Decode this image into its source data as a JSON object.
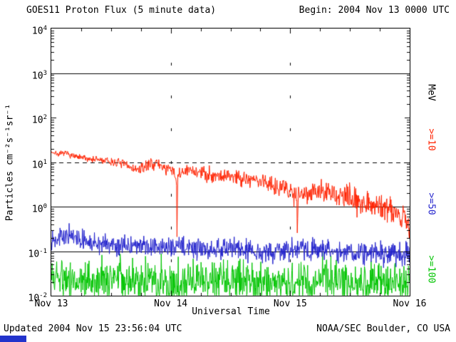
{
  "chart_data": {
    "type": "line",
    "title": "GOES11 Proton Flux (5 minute data)",
    "begin_label": "Begin: 2004 Nov 13 0000 UTC",
    "cadence_minutes": 5,
    "x_axis": {
      "label": "Universal Time",
      "range_days": [
        0,
        3
      ],
      "tick_labels": [
        "Nov 13",
        "Nov 14",
        "Nov 15",
        "Nov 16"
      ]
    },
    "y_axis": {
      "label": "Particles  cm⁻²s⁻¹sr⁻¹",
      "scale": "log",
      "range": [
        0.01,
        10000
      ],
      "tick_base": "10",
      "tick_exponents": [
        "4",
        "3",
        "2",
        "1",
        "0",
        "-1",
        "-2"
      ]
    },
    "right_axis_labels": [
      {
        "text": "MeV",
        "color": "#000000"
      },
      {
        "text": ">=10",
        "color": "#ff2200"
      },
      {
        "text": ">=50",
        "color": "#2222cc"
      },
      {
        "text": ">=100",
        "color": "#00c400"
      }
    ],
    "gridlines": {
      "horizontal_solid_at": [
        1000,
        1,
        0.1
      ],
      "horizontal_dashed_at": [
        10
      ],
      "vertical_dashed_at_days": [
        1,
        2
      ]
    },
    "series": [
      {
        "name": ">=10",
        "units": "MeV",
        "color": "#ff2200",
        "seed": 7,
        "noise_dex": [
          0.05,
          0.32
        ],
        "keypoints_day_flux": [
          [
            0.0,
            17
          ],
          [
            0.06,
            15
          ],
          [
            0.12,
            16
          ],
          [
            0.2,
            13
          ],
          [
            0.3,
            12
          ],
          [
            0.42,
            11
          ],
          [
            0.5,
            10
          ],
          [
            0.58,
            9.5
          ],
          [
            0.65,
            8
          ],
          [
            0.72,
            6.5
          ],
          [
            0.78,
            7.5
          ],
          [
            0.83,
            9.5
          ],
          [
            0.9,
            9
          ],
          [
            0.96,
            7
          ],
          [
            1.0,
            6.5
          ],
          [
            1.03,
            5.5
          ],
          [
            1.048,
            4.5
          ],
          [
            1.052,
            0.22
          ],
          [
            1.058,
            4.5
          ],
          [
            1.1,
            6
          ],
          [
            1.18,
            6.5
          ],
          [
            1.28,
            5.5
          ],
          [
            1.4,
            5
          ],
          [
            1.55,
            4.8
          ],
          [
            1.68,
            4
          ],
          [
            1.8,
            3.5
          ],
          [
            1.92,
            2.8
          ],
          [
            2.0,
            2.2
          ],
          [
            2.04,
            2.0
          ],
          [
            2.056,
            1.8
          ],
          [
            2.06,
            0.25
          ],
          [
            2.066,
            1.8
          ],
          [
            2.12,
            2.1
          ],
          [
            2.2,
            2.3
          ],
          [
            2.3,
            2.0
          ],
          [
            2.42,
            1.7
          ],
          [
            2.52,
            1.5
          ],
          [
            2.62,
            1.3
          ],
          [
            2.7,
            1.15
          ],
          [
            2.78,
            1.0
          ],
          [
            2.84,
            0.95
          ],
          [
            2.88,
            0.8
          ],
          [
            2.92,
            0.55
          ],
          [
            2.95,
            0.75
          ],
          [
            2.97,
            0.4
          ],
          [
            3.0,
            0.3
          ]
        ]
      },
      {
        "name": ">=50",
        "units": "MeV",
        "color": "#2222cc",
        "seed": 13,
        "noise_dex": [
          0.2,
          0.26
        ],
        "keypoints_day_flux": [
          [
            0.0,
            0.2
          ],
          [
            0.15,
            0.22
          ],
          [
            0.3,
            0.16
          ],
          [
            0.5,
            0.14
          ],
          [
            0.7,
            0.13
          ],
          [
            0.9,
            0.12
          ],
          [
            1.1,
            0.13
          ],
          [
            1.3,
            0.11
          ],
          [
            1.5,
            0.12
          ],
          [
            1.7,
            0.1
          ],
          [
            1.9,
            0.1
          ],
          [
            2.1,
            0.11
          ],
          [
            2.3,
            0.1
          ],
          [
            2.5,
            0.09
          ],
          [
            2.7,
            0.1
          ],
          [
            2.85,
            0.09
          ],
          [
            3.0,
            0.08
          ]
        ]
      },
      {
        "name": ">=100",
        "units": "MeV",
        "color": "#00c400",
        "seed": 5,
        "noise_dex": [
          0.48,
          0.48
        ],
        "keypoints_day_flux": [
          [
            0.0,
            0.028
          ],
          [
            0.3,
            0.022
          ],
          [
            0.6,
            0.025
          ],
          [
            1.0,
            0.02
          ],
          [
            1.4,
            0.022
          ],
          [
            1.8,
            0.02
          ],
          [
            2.2,
            0.021
          ],
          [
            2.6,
            0.02
          ],
          [
            3.0,
            0.019
          ]
        ]
      }
    ]
  },
  "footer": {
    "updated": "Updated 2004 Nov 15 23:56:04 UTC",
    "source": "NOAA/SEC Boulder, CO USA"
  },
  "decor": {
    "bottom_strip_color": "#2233cc"
  }
}
